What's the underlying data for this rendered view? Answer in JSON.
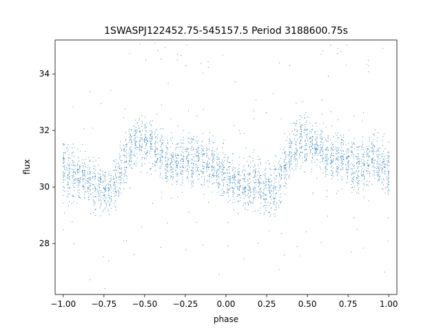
{
  "chart_data": {
    "type": "scatter",
    "title": "1SWASPJ122452.75-545157.5 Period 3188600.75s",
    "xlabel": "phase",
    "ylabel": "flux",
    "xlim": [
      -1.05,
      1.05
    ],
    "ylim": [
      26.2,
      35.2
    ],
    "xticks": [
      -1.0,
      -0.75,
      -0.5,
      -0.25,
      0.0,
      0.25,
      0.5,
      0.75,
      1.0
    ],
    "xtick_labels": [
      "−1.00",
      "−0.75",
      "−0.50",
      "−0.25",
      "0.00",
      "0.25",
      "0.50",
      "0.75",
      "1.00"
    ],
    "yticks": [
      28,
      30,
      32,
      34
    ],
    "ytick_labels": [
      "28",
      "30",
      "32",
      "34"
    ],
    "grid": false,
    "legend": "none",
    "marker_color": "#1f77b4",
    "series": [
      {
        "x": [
          -1.0,
          -0.95,
          -0.9,
          -0.85,
          -0.8,
          -0.75,
          -0.7,
          -0.65,
          -0.6,
          -0.55,
          -0.5,
          -0.45,
          -0.4,
          -0.35,
          -0.3,
          -0.25,
          -0.2,
          -0.15,
          -0.1,
          -0.05,
          0.0,
          0.05,
          0.1,
          0.15,
          0.2,
          0.25,
          0.3,
          0.35,
          0.4,
          0.45,
          0.5,
          0.55,
          0.6,
          0.65,
          0.7,
          0.75,
          0.8,
          0.85,
          0.9,
          0.95,
          1.0
        ],
        "y": [
          30.6,
          30.5,
          30.4,
          30.3,
          30.0,
          29.8,
          29.9,
          30.6,
          31.2,
          31.6,
          31.7,
          31.5,
          31.2,
          30.9,
          30.8,
          30.9,
          31.0,
          30.9,
          30.9,
          30.6,
          30.4,
          30.2,
          30.1,
          30.1,
          30.1,
          29.8,
          29.9,
          30.6,
          31.2,
          31.6,
          31.7,
          31.5,
          31.3,
          31.1,
          31.0,
          30.9,
          30.7,
          30.8,
          31.1,
          30.8,
          30.5
        ]
      }
    ]
  }
}
